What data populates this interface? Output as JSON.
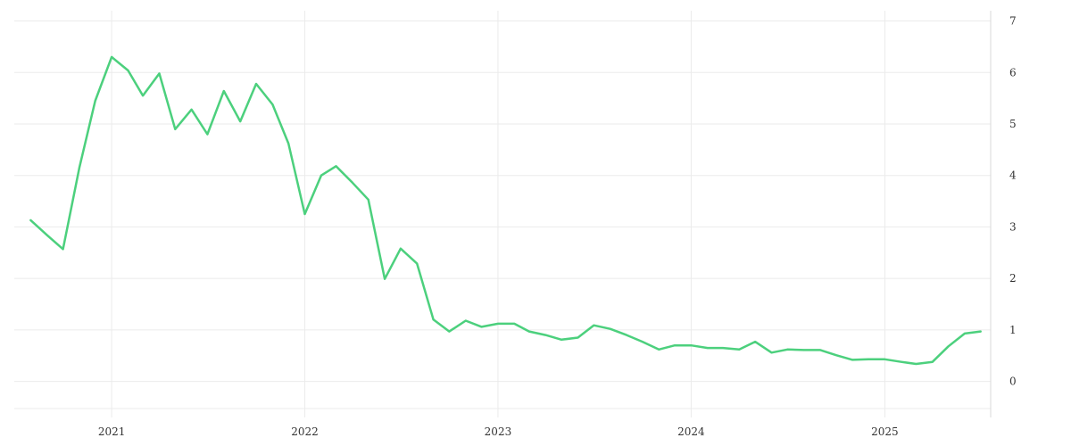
{
  "chart_data": {
    "type": "line",
    "title": "",
    "xlabel": "",
    "ylabel": "",
    "grid": true,
    "y_axis_side": "right",
    "x_ticks": [
      "2021",
      "2022",
      "2023",
      "2024",
      "2025"
    ],
    "y_ticks": [
      0,
      1,
      2,
      3,
      4,
      5,
      6,
      7
    ],
    "ylim": [
      -0.7,
      7.2
    ],
    "xlim": [
      "2020-07-01",
      "2025-07-20"
    ],
    "series": [
      {
        "color": "#4cd07d",
        "x": [
          "2020-08-01",
          "2020-09-01",
          "2020-10-01",
          "2020-11-01",
          "2020-12-01",
          "2021-01-01",
          "2021-02-01",
          "2021-03-01",
          "2021-04-01",
          "2021-05-01",
          "2021-06-01",
          "2021-07-01",
          "2021-08-01",
          "2021-09-01",
          "2021-10-01",
          "2021-11-01",
          "2021-12-01",
          "2022-01-01",
          "2022-02-01",
          "2022-03-01",
          "2022-04-01",
          "2022-05-01",
          "2022-06-01",
          "2022-07-01",
          "2022-08-01",
          "2022-09-01",
          "2022-10-01",
          "2022-11-01",
          "2022-12-01",
          "2023-01-01",
          "2023-02-01",
          "2023-03-01",
          "2023-04-01",
          "2023-05-01",
          "2023-06-01",
          "2023-07-01",
          "2023-08-01",
          "2023-09-01",
          "2023-10-01",
          "2023-11-01",
          "2023-12-01",
          "2024-01-01",
          "2024-02-01",
          "2024-03-01",
          "2024-04-01",
          "2024-05-01",
          "2024-06-01",
          "2024-07-01",
          "2024-08-01",
          "2024-09-01",
          "2024-10-01",
          "2024-11-01",
          "2024-12-01",
          "2025-01-01",
          "2025-02-01",
          "2025-03-01",
          "2025-04-01",
          "2025-05-01",
          "2025-06-01",
          "2025-07-01"
        ],
        "values": [
          3.13,
          2.84,
          2.57,
          4.15,
          5.45,
          6.3,
          6.04,
          5.55,
          5.98,
          4.9,
          5.28,
          4.8,
          5.64,
          5.05,
          5.78,
          5.38,
          4.62,
          3.25,
          4.0,
          4.18,
          3.86,
          3.53,
          1.99,
          2.58,
          2.29,
          1.2,
          0.97,
          1.18,
          1.06,
          1.12,
          1.12,
          0.97,
          0.9,
          0.81,
          0.85,
          1.09,
          1.02,
          0.9,
          0.77,
          0.62,
          0.7,
          0.7,
          0.65,
          0.65,
          0.62,
          0.77,
          0.56,
          0.62,
          0.61,
          0.61,
          0.51,
          0.42,
          0.43,
          0.43,
          0.38,
          0.34,
          0.38,
          0.68,
          0.93,
          0.97
        ]
      }
    ]
  }
}
